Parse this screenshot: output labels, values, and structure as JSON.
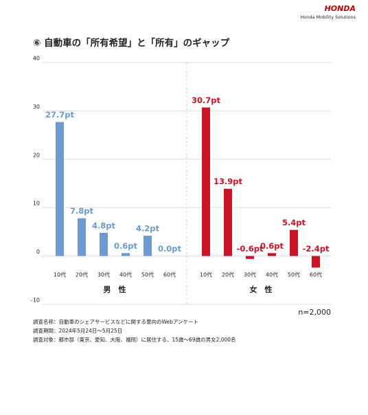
{
  "header": {
    "brand": "HONDA",
    "subbrand": "Honda Mobility Solutions"
  },
  "chart_data": {
    "type": "bar",
    "title": "⑥ 自動車の「所有希望」と「所有」のギャップ",
    "categories": [
      "10代",
      "20代",
      "30代",
      "40代",
      "50代",
      "60代"
    ],
    "series": [
      {
        "name": "男　性",
        "color": "#6b9bd2",
        "values": [
          27.7,
          7.8,
          4.8,
          0.6,
          4.2,
          0.0
        ],
        "value_labels": [
          "27.7pt",
          "7.8pt",
          "4.8pt",
          "0.6pt",
          "4.2pt",
          "0.0pt"
        ]
      },
      {
        "name": "女　性",
        "color": "#cc1425",
        "values": [
          30.7,
          13.9,
          -0.6,
          0.6,
          5.4,
          -2.4
        ],
        "value_labels": [
          "30.7pt",
          "13.9pt",
          "-0.6pt",
          "0.6pt",
          "5.4pt",
          "-2.4pt"
        ]
      }
    ],
    "ylim": [
      -10,
      40
    ],
    "yticks": [
      -10,
      0,
      10,
      20,
      30,
      40
    ],
    "grid": true,
    "sample_note": "n=2,000"
  },
  "notes": [
    "調査名称：自動車のシェアサービスなどに関する意向のWebアンケート",
    "調査期間：2024年5月24日～5月25日",
    "調査対象：都市部（東京、愛知、大阪、福岡）に居住する、15歳～69歳の男女2,000名"
  ]
}
